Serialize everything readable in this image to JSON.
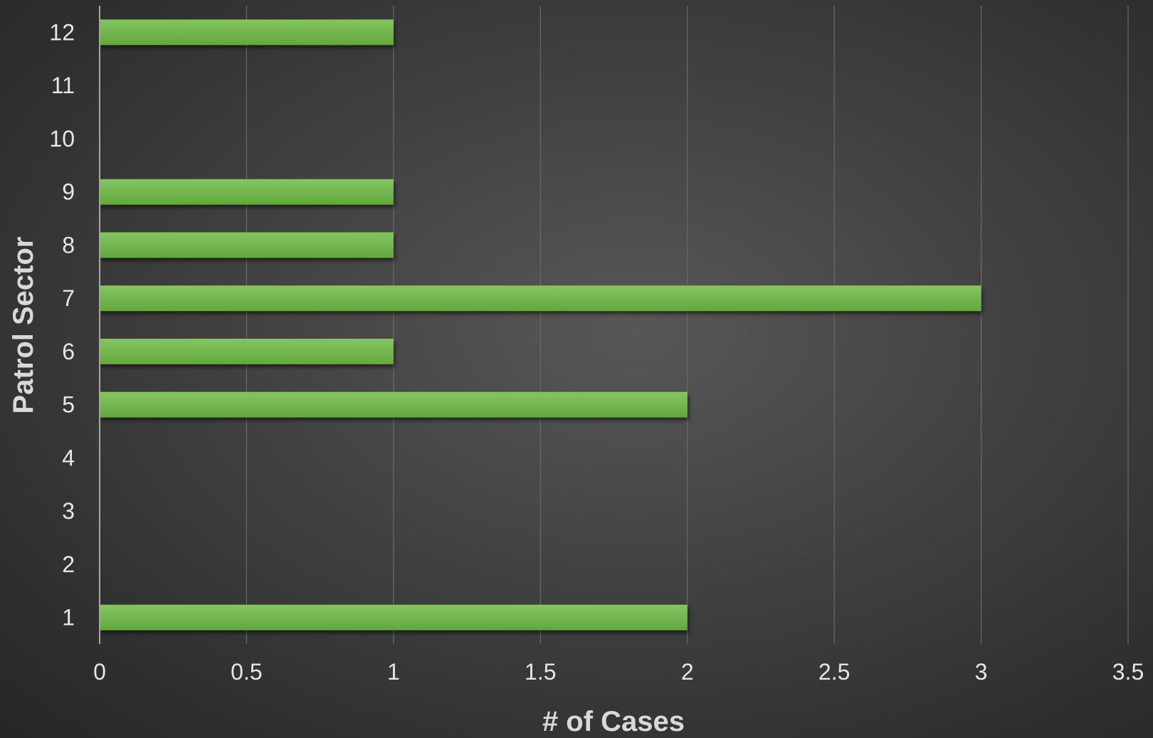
{
  "chart_data": {
    "type": "bar",
    "orientation": "horizontal",
    "categories": [
      "1",
      "2",
      "3",
      "4",
      "5",
      "6",
      "7",
      "8",
      "9",
      "10",
      "11",
      "12"
    ],
    "values": [
      2,
      0,
      0,
      0,
      2,
      1,
      3,
      1,
      1,
      0,
      0,
      1
    ],
    "xlabel": "# of Cases",
    "ylabel": "Patrol Sector",
    "xlim": [
      0,
      3.5
    ],
    "x_ticks": [
      "0",
      "0.5",
      "1",
      "1.5",
      "2",
      "2.5",
      "3",
      "3.5"
    ],
    "grid": "vertical",
    "legend": "none",
    "colors": {
      "bar": "#70ad47",
      "bar_light": "#82c05c",
      "grid": "#6a6a6a",
      "axis": "#a6a6a6"
    }
  }
}
